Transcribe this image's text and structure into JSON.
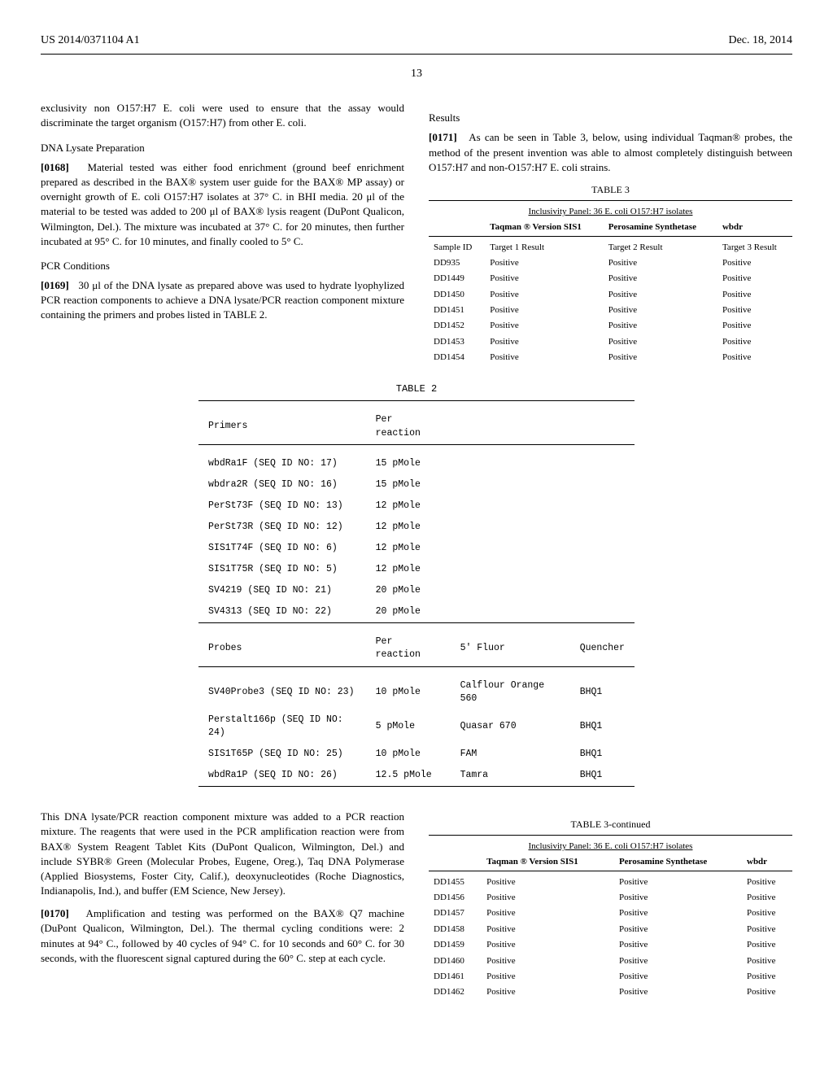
{
  "header": {
    "left": "US 2014/0371104 A1",
    "right": "Dec. 18, 2014"
  },
  "page_number": "13",
  "left_col": {
    "intro_para": "exclusivity non O157:H7 E. coli were used to ensure that the assay would discriminate the target organism (O157:H7) from other E. coli.",
    "dna_heading": "DNA Lysate Preparation",
    "para_0168": "Material tested was either food enrichment (ground beef enrichment prepared as described in the BAX® system user guide for the BAX® MP assay) or overnight growth of E. coli O157:H7 isolates at 37° C. in BHI media. 20 μl of the material to be tested was added to 200 μl of BAX® lysis reagent (DuPont Qualicon, Wilmington, Del.). The mixture was incubated at 37° C. for 20 minutes, then further incubated at 95° C. for 10 minutes, and finally cooled to 5° C.",
    "pcr_heading": "PCR Conditions",
    "para_0169": "30 μl of the DNA lysate as prepared above was used to hydrate lyophylized PCR reaction components to achieve a DNA lysate/PCR reaction component mixture containing the primers and probes listed in TABLE 2.",
    "para_after_t2": "This DNA lysate/PCR reaction component mixture was added to a PCR reaction mixture. The reagents that were used in the PCR amplification reaction were from BAX® System Reagent Tablet Kits (DuPont Qualicon, Wilmington, Del.) and include SYBR® Green (Molecular Probes, Eugene, Oreg.), Taq DNA Polymerase (Applied Biosystems, Foster City, Calif.), deoxynucleotides (Roche Diagnostics, Indianapolis, Ind.), and buffer (EM Science, New Jersey).",
    "para_0170": "Amplification and testing was performed on the BAX® Q7 machine (DuPont Qualicon, Wilmington, Del.). The thermal cycling conditions were: 2 minutes at 94° C., followed by 40 cycles of 94° C. for 10 seconds and 60° C. for 30 seconds, with the fluorescent signal captured during the 60° C. step at each cycle."
  },
  "right_col": {
    "results_heading": "Results",
    "para_0171": "As can be seen in Table 3, below, using individual Taqman® probes, the method of the present invention was able to almost completely distinguish between O157:H7 and non-O157:H7 E. coli strains."
  },
  "table2": {
    "title": "TABLE 2",
    "primers_header": {
      "c1": "Primers",
      "c2": "Per reaction"
    },
    "primers": [
      {
        "name": "wbdRa1F (SEQ ID NO: 17)",
        "amt": "15 pMole"
      },
      {
        "name": "wbdra2R (SEQ ID NO: 16)",
        "amt": "15 pMole"
      },
      {
        "name": "PerSt73F (SEQ ID NO: 13)",
        "amt": "12 pMole"
      },
      {
        "name": "PerSt73R (SEQ ID NO: 12)",
        "amt": "12 pMole"
      },
      {
        "name": "SIS1T74F (SEQ ID NO: 6)",
        "amt": "12 pMole"
      },
      {
        "name": "SIS1T75R (SEQ ID NO: 5)",
        "amt": "12 pMole"
      },
      {
        "name": "SV4219 (SEQ ID NO: 21)",
        "amt": "20 pMole"
      },
      {
        "name": "SV4313 (SEQ ID NO: 22)",
        "amt": "20 pMole"
      }
    ],
    "probes_header": {
      "c1": "Probes",
      "c2": "Per reaction",
      "c3": "5' Fluor",
      "c4": "Quencher"
    },
    "probes": [
      {
        "name": "SV40Probe3 (SEQ ID NO: 23)",
        "amt": "10 pMole",
        "fluor": "Calflour Orange 560",
        "quench": "BHQ1"
      },
      {
        "name": "Perstalt166p (SEQ ID NO: 24)",
        "amt": "5 pMole",
        "fluor": "Quasar 670",
        "quench": "BHQ1"
      },
      {
        "name": "SIS1T65P (SEQ ID NO: 25)",
        "amt": "10 pMole",
        "fluor": "FAM",
        "quench": "BHQ1"
      },
      {
        "name": "wbdRa1P (SEQ ID NO: 26)",
        "amt": "12.5 pMole",
        "fluor": "Tamra",
        "quench": "BHQ1"
      }
    ]
  },
  "table3": {
    "title": "TABLE 3",
    "subtitle": "Inclusivity Panel: 36 E. coli O157:H7 isolates",
    "header": {
      "c1": "",
      "c2": "Taqman ® Version SIS1",
      "c3": "Perosamine Synthetase",
      "c4": "wbdr"
    },
    "first_row": {
      "c1": "Sample ID",
      "c2": "Target 1 Result",
      "c3": "Target 2 Result",
      "c4": "Target 3 Result"
    },
    "rows": [
      {
        "c1": "DD935",
        "c2": "Positive",
        "c3": "Positive",
        "c4": "Positive"
      },
      {
        "c1": "DD1449",
        "c2": "Positive",
        "c3": "Positive",
        "c4": "Positive"
      },
      {
        "c1": "DD1450",
        "c2": "Positive",
        "c3": "Positive",
        "c4": "Positive"
      },
      {
        "c1": "DD1451",
        "c2": "Positive",
        "c3": "Positive",
        "c4": "Positive"
      },
      {
        "c1": "DD1452",
        "c2": "Positive",
        "c3": "Positive",
        "c4": "Positive"
      },
      {
        "c1": "DD1453",
        "c2": "Positive",
        "c3": "Positive",
        "c4": "Positive"
      },
      {
        "c1": "DD1454",
        "c2": "Positive",
        "c3": "Positive",
        "c4": "Positive"
      }
    ]
  },
  "table3cont": {
    "title": "TABLE 3-continued",
    "subtitle": "Inclusivity Panel: 36 E. coli O157:H7 isolates",
    "header": {
      "c1": "",
      "c2": "Taqman ® Version SIS1",
      "c3": "Perosamine Synthetase",
      "c4": "wbdr"
    },
    "rows": [
      {
        "c1": "DD1455",
        "c2": "Positive",
        "c3": "Positive",
        "c4": "Positive"
      },
      {
        "c1": "DD1456",
        "c2": "Positive",
        "c3": "Positive",
        "c4": "Positive"
      },
      {
        "c1": "DD1457",
        "c2": "Positive",
        "c3": "Positive",
        "c4": "Positive"
      },
      {
        "c1": "DD1458",
        "c2": "Positive",
        "c3": "Positive",
        "c4": "Positive"
      },
      {
        "c1": "DD1459",
        "c2": "Positive",
        "c3": "Positive",
        "c4": "Positive"
      },
      {
        "c1": "DD1460",
        "c2": "Positive",
        "c3": "Positive",
        "c4": "Positive"
      },
      {
        "c1": "DD1461",
        "c2": "Positive",
        "c3": "Positive",
        "c4": "Positive"
      },
      {
        "c1": "DD1462",
        "c2": "Positive",
        "c3": "Positive",
        "c4": "Positive"
      }
    ]
  }
}
